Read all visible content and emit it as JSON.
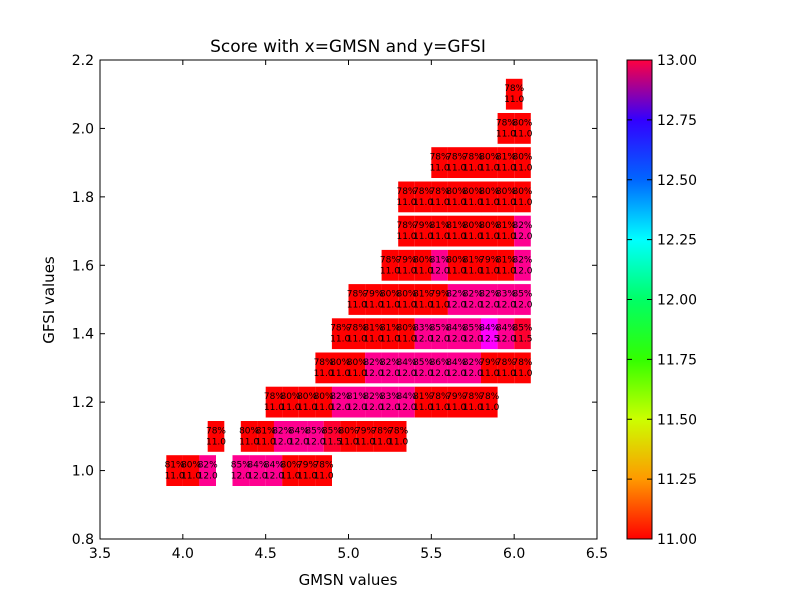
{
  "chart_data": {
    "type": "heatmap",
    "title": "Score with x=GMSN and y=GFSI",
    "xlabel": "GMSN values",
    "ylabel": "GFSI values",
    "xlim": [
      3.5,
      6.5
    ],
    "ylim": [
      0.8,
      2.2
    ],
    "xticks": [
      "3.5",
      "4.0",
      "4.5",
      "5.0",
      "5.5",
      "6.0",
      "6.5"
    ],
    "yticks": [
      "0.8",
      "1.0",
      "1.2",
      "1.4",
      "1.6",
      "1.8",
      "2.0",
      "2.2"
    ],
    "colorbar": {
      "range": [
        11.0,
        13.0
      ],
      "ticks": [
        "11.00",
        "11.25",
        "11.50",
        "11.75",
        "12.00",
        "12.25",
        "12.50",
        "12.75",
        "13.00"
      ]
    },
    "cells": [
      {
        "x": 3.95,
        "y": 1.0,
        "pct": "81%",
        "val": "11.0"
      },
      {
        "x": 4.05,
        "y": 1.0,
        "pct": "80%",
        "val": "11.0"
      },
      {
        "x": 4.15,
        "y": 1.0,
        "pct": "82%",
        "val": "12.0"
      },
      {
        "x": 4.35,
        "y": 1.0,
        "pct": "85%",
        "val": "12.0"
      },
      {
        "x": 4.45,
        "y": 1.0,
        "pct": "84%",
        "val": "12.0"
      },
      {
        "x": 4.55,
        "y": 1.0,
        "pct": "84%",
        "val": "12.0"
      },
      {
        "x": 4.65,
        "y": 1.0,
        "pct": "80%",
        "val": "11.0"
      },
      {
        "x": 4.75,
        "y": 1.0,
        "pct": "79%",
        "val": "11.0"
      },
      {
        "x": 4.85,
        "y": 1.0,
        "pct": "78%",
        "val": "11.0"
      },
      {
        "x": 4.2,
        "y": 1.1,
        "pct": "78%",
        "val": "11.0"
      },
      {
        "x": 4.4,
        "y": 1.1,
        "pct": "80%",
        "val": "11.0"
      },
      {
        "x": 4.5,
        "y": 1.1,
        "pct": "81%",
        "val": "11.0"
      },
      {
        "x": 4.6,
        "y": 1.1,
        "pct": "82%",
        "val": "12.0"
      },
      {
        "x": 4.7,
        "y": 1.1,
        "pct": "84%",
        "val": "12.0"
      },
      {
        "x": 4.8,
        "y": 1.1,
        "pct": "85%",
        "val": "12.0"
      },
      {
        "x": 4.9,
        "y": 1.1,
        "pct": "85%",
        "val": "11.5"
      },
      {
        "x": 5.0,
        "y": 1.1,
        "pct": "80%",
        "val": "11.0"
      },
      {
        "x": 5.1,
        "y": 1.1,
        "pct": "79%",
        "val": "11.0"
      },
      {
        "x": 5.2,
        "y": 1.1,
        "pct": "78%",
        "val": "11.0"
      },
      {
        "x": 5.3,
        "y": 1.1,
        "pct": "78%",
        "val": "11.0"
      },
      {
        "x": 4.55,
        "y": 1.2,
        "pct": "78%",
        "val": "11.0"
      },
      {
        "x": 4.65,
        "y": 1.2,
        "pct": "80%",
        "val": "11.0"
      },
      {
        "x": 4.75,
        "y": 1.2,
        "pct": "80%",
        "val": "11.0"
      },
      {
        "x": 4.85,
        "y": 1.2,
        "pct": "80%",
        "val": "11.0"
      },
      {
        "x": 4.95,
        "y": 1.2,
        "pct": "82%",
        "val": "12.0"
      },
      {
        "x": 5.05,
        "y": 1.2,
        "pct": "81%",
        "val": "12.0"
      },
      {
        "x": 5.15,
        "y": 1.2,
        "pct": "82%",
        "val": "12.0"
      },
      {
        "x": 5.25,
        "y": 1.2,
        "pct": "83%",
        "val": "12.0"
      },
      {
        "x": 5.35,
        "y": 1.2,
        "pct": "84%",
        "val": "12.0"
      },
      {
        "x": 5.45,
        "y": 1.2,
        "pct": "81%",
        "val": "11.0"
      },
      {
        "x": 5.55,
        "y": 1.2,
        "pct": "78%",
        "val": "11.0"
      },
      {
        "x": 5.65,
        "y": 1.2,
        "pct": "79%",
        "val": "11.0"
      },
      {
        "x": 5.75,
        "y": 1.2,
        "pct": "78%",
        "val": "11.0"
      },
      {
        "x": 5.85,
        "y": 1.2,
        "pct": "78%",
        "val": "11.0"
      },
      {
        "x": 4.85,
        "y": 1.3,
        "pct": "78%",
        "val": "11.0"
      },
      {
        "x": 4.95,
        "y": 1.3,
        "pct": "80%",
        "val": "11.0"
      },
      {
        "x": 5.05,
        "y": 1.3,
        "pct": "80%",
        "val": "11.0"
      },
      {
        "x": 5.15,
        "y": 1.3,
        "pct": "82%",
        "val": "12.0"
      },
      {
        "x": 5.25,
        "y": 1.3,
        "pct": "82%",
        "val": "12.0"
      },
      {
        "x": 5.35,
        "y": 1.3,
        "pct": "84%",
        "val": "12.0"
      },
      {
        "x": 5.45,
        "y": 1.3,
        "pct": "85%",
        "val": "12.0"
      },
      {
        "x": 5.55,
        "y": 1.3,
        "pct": "86%",
        "val": "12.0"
      },
      {
        "x": 5.65,
        "y": 1.3,
        "pct": "84%",
        "val": "12.0"
      },
      {
        "x": 5.75,
        "y": 1.3,
        "pct": "82%",
        "val": "12.0"
      },
      {
        "x": 5.85,
        "y": 1.3,
        "pct": "79%",
        "val": "11.0"
      },
      {
        "x": 5.95,
        "y": 1.3,
        "pct": "78%",
        "val": "11.0"
      },
      {
        "x": 6.05,
        "y": 1.3,
        "pct": "78%",
        "val": "11.0"
      },
      {
        "x": 4.95,
        "y": 1.4,
        "pct": "78%",
        "val": "11.0"
      },
      {
        "x": 5.05,
        "y": 1.4,
        "pct": "78%",
        "val": "11.0"
      },
      {
        "x": 5.15,
        "y": 1.4,
        "pct": "81%",
        "val": "11.0"
      },
      {
        "x": 5.25,
        "y": 1.4,
        "pct": "81%",
        "val": "11.0"
      },
      {
        "x": 5.35,
        "y": 1.4,
        "pct": "80%",
        "val": "11.0"
      },
      {
        "x": 5.45,
        "y": 1.4,
        "pct": "83%",
        "val": "12.0"
      },
      {
        "x": 5.55,
        "y": 1.4,
        "pct": "85%",
        "val": "12.0"
      },
      {
        "x": 5.65,
        "y": 1.4,
        "pct": "84%",
        "val": "12.0"
      },
      {
        "x": 5.75,
        "y": 1.4,
        "pct": "85%",
        "val": "12.0"
      },
      {
        "x": 5.85,
        "y": 1.4,
        "pct": "84%",
        "val": "12.5"
      },
      {
        "x": 5.95,
        "y": 1.4,
        "pct": "84%",
        "val": "12.0"
      },
      {
        "x": 6.05,
        "y": 1.4,
        "pct": "85%",
        "val": "11.5"
      },
      {
        "x": 5.05,
        "y": 1.5,
        "pct": "78%",
        "val": "11.0"
      },
      {
        "x": 5.15,
        "y": 1.5,
        "pct": "79%",
        "val": "11.0"
      },
      {
        "x": 5.25,
        "y": 1.5,
        "pct": "80%",
        "val": "11.0"
      },
      {
        "x": 5.35,
        "y": 1.5,
        "pct": "80%",
        "val": "11.0"
      },
      {
        "x": 5.45,
        "y": 1.5,
        "pct": "81%",
        "val": "11.0"
      },
      {
        "x": 5.55,
        "y": 1.5,
        "pct": "79%",
        "val": "11.0"
      },
      {
        "x": 5.65,
        "y": 1.5,
        "pct": "82%",
        "val": "12.0"
      },
      {
        "x": 5.75,
        "y": 1.5,
        "pct": "82%",
        "val": "12.0"
      },
      {
        "x": 5.85,
        "y": 1.5,
        "pct": "82%",
        "val": "12.0"
      },
      {
        "x": 5.95,
        "y": 1.5,
        "pct": "83%",
        "val": "12.0"
      },
      {
        "x": 6.05,
        "y": 1.5,
        "pct": "85%",
        "val": "12.0"
      },
      {
        "x": 5.25,
        "y": 1.6,
        "pct": "78%",
        "val": "11.0"
      },
      {
        "x": 5.35,
        "y": 1.6,
        "pct": "79%",
        "val": "11.0"
      },
      {
        "x": 5.45,
        "y": 1.6,
        "pct": "80%",
        "val": "11.0"
      },
      {
        "x": 5.55,
        "y": 1.6,
        "pct": "81%",
        "val": "12.0"
      },
      {
        "x": 5.65,
        "y": 1.6,
        "pct": "80%",
        "val": "11.0"
      },
      {
        "x": 5.75,
        "y": 1.6,
        "pct": "81%",
        "val": "11.0"
      },
      {
        "x": 5.85,
        "y": 1.6,
        "pct": "79%",
        "val": "11.0"
      },
      {
        "x": 5.95,
        "y": 1.6,
        "pct": "81%",
        "val": "11.0"
      },
      {
        "x": 6.05,
        "y": 1.6,
        "pct": "82%",
        "val": "12.0"
      },
      {
        "x": 5.35,
        "y": 1.7,
        "pct": "78%",
        "val": "11.0"
      },
      {
        "x": 5.45,
        "y": 1.7,
        "pct": "79%",
        "val": "11.0"
      },
      {
        "x": 5.55,
        "y": 1.7,
        "pct": "81%",
        "val": "11.0"
      },
      {
        "x": 5.65,
        "y": 1.7,
        "pct": "81%",
        "val": "11.0"
      },
      {
        "x": 5.75,
        "y": 1.7,
        "pct": "80%",
        "val": "11.0"
      },
      {
        "x": 5.85,
        "y": 1.7,
        "pct": "80%",
        "val": "11.0"
      },
      {
        "x": 5.95,
        "y": 1.7,
        "pct": "81%",
        "val": "11.0"
      },
      {
        "x": 6.05,
        "y": 1.7,
        "pct": "82%",
        "val": "12.0"
      },
      {
        "x": 5.35,
        "y": 1.8,
        "pct": "78%",
        "val": "11.0"
      },
      {
        "x": 5.45,
        "y": 1.8,
        "pct": "78%",
        "val": "11.0"
      },
      {
        "x": 5.55,
        "y": 1.8,
        "pct": "78%",
        "val": "11.0"
      },
      {
        "x": 5.65,
        "y": 1.8,
        "pct": "80%",
        "val": "11.0"
      },
      {
        "x": 5.75,
        "y": 1.8,
        "pct": "80%",
        "val": "11.0"
      },
      {
        "x": 5.85,
        "y": 1.8,
        "pct": "80%",
        "val": "11.0"
      },
      {
        "x": 5.95,
        "y": 1.8,
        "pct": "80%",
        "val": "11.0"
      },
      {
        "x": 6.05,
        "y": 1.8,
        "pct": "80%",
        "val": "11.0"
      },
      {
        "x": 5.55,
        "y": 1.9,
        "pct": "78%",
        "val": "11.0"
      },
      {
        "x": 5.65,
        "y": 1.9,
        "pct": "78%",
        "val": "11.0"
      },
      {
        "x": 5.75,
        "y": 1.9,
        "pct": "78%",
        "val": "11.0"
      },
      {
        "x": 5.85,
        "y": 1.9,
        "pct": "80%",
        "val": "11.0"
      },
      {
        "x": 5.95,
        "y": 1.9,
        "pct": "81%",
        "val": "11.0"
      },
      {
        "x": 6.05,
        "y": 1.9,
        "pct": "80%",
        "val": "11.0"
      },
      {
        "x": 5.95,
        "y": 2.0,
        "pct": "78%",
        "val": "11.0"
      },
      {
        "x": 6.05,
        "y": 2.0,
        "pct": "80%",
        "val": "11.0"
      },
      {
        "x": 6.0,
        "y": 2.1,
        "pct": "78%",
        "val": "11.0"
      }
    ]
  }
}
